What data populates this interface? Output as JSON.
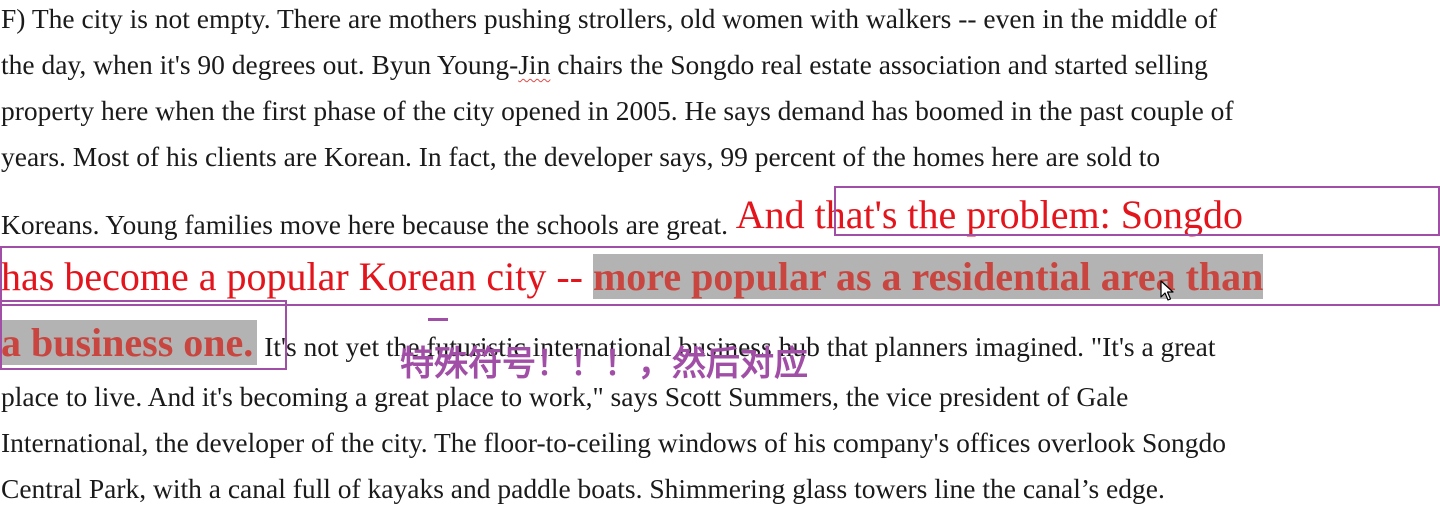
{
  "paragraph": {
    "line1": "F) The city is not empty. There are mothers pushing strollers, old women with walkers -- even in the middle of",
    "line2_a": "the day, when it's 90 degrees out. Byun Young-",
    "line2_jin": "Jin",
    "line2_b": " chairs the Songdo real estate association and started selling",
    "line3": "property here when the first phase of the city opened in 2005. He says demand has boomed in the past couple of",
    "line4": "years. Most of his clients are Korean. In fact, the developer says, 99 percent of the homes here are sold to",
    "line5_a": "Koreans. Young families move here because the schools are great.",
    "line5_red": " And that's the problem: Songdo",
    "line6_red": "has become a popular Korean city -- ",
    "line6_hl": "more popular as a residential area than",
    "line7_hl": "a business one.",
    "line7_rest": " It's not yet the futuristic international business hub that planners imagined. \"It's a great",
    "line8": "place to live. And it's becoming a great place to work,\" says Scott Summers, the vice president of Gale",
    "line9": "International, the developer of the city. The floor-to-ceiling windows of his company's offices overlook Songdo",
    "line10": "Central Park, with a canal full of kayaks and paddle boats. Shimmering glass towers line the canal’s edge."
  },
  "annotation": {
    "note": "特殊符号！！！，然后对应"
  },
  "colors": {
    "red_text": "#e3141b",
    "highlight_bg": "#b3b3b3",
    "highlight_text": "#c8463f",
    "annotation_purple": "#a14ea6"
  },
  "icons": {
    "cursor": "mouse-pointer-icon"
  }
}
